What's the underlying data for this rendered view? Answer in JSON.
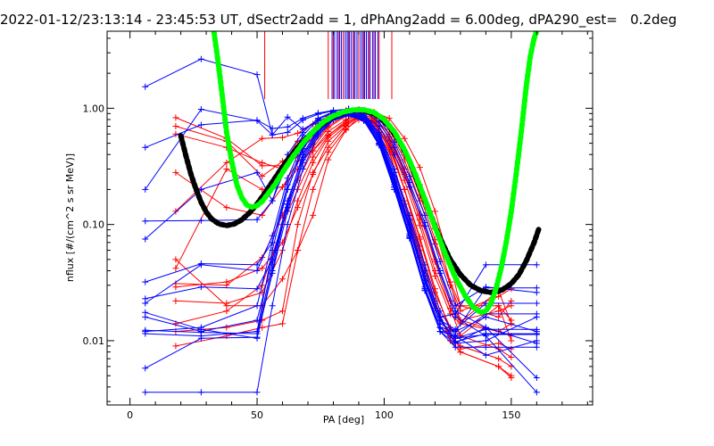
{
  "chart_data": {
    "type": "line",
    "title": "2022-01-12/23:13:14 - 23:45:53 UT, dSectr2add = 1, dPhAng2add = 6.00deg, dPA290_est=   0.2deg",
    "xlabel": "PA [deg]",
    "ylabel": "nflux [#/(cm^2 s sr MeV)]",
    "xlim": [
      -9,
      182
    ],
    "ylim": [
      0.0028,
      4.6
    ],
    "y_scale": "log",
    "x_ticks": [
      0,
      50,
      100,
      150
    ],
    "x_tick_labels": [
      "0",
      "50",
      "100",
      "150"
    ],
    "y_ticks": [
      0.01,
      0.1,
      1.0
    ],
    "y_tick_labels": [
      "0.01",
      "0.10",
      "1.00"
    ],
    "grid": false,
    "colors": {
      "red_series": "#ff0000",
      "blue_series": "#0000ff",
      "black_fit": "#000000",
      "green_fit": "#00ff00",
      "axes": "#000000"
    },
    "spikes": {
      "blue_x": [
        79.5,
        80.5,
        81.5,
        82.5,
        83.2,
        84,
        84.8,
        85.5,
        86.3,
        87,
        87.8,
        88.5,
        89.3,
        90,
        90.8,
        91.5,
        92.3,
        93,
        93.8,
        94.5,
        95.5,
        96.5,
        97.5
      ],
      "red_x": [
        53,
        78,
        80,
        82,
        84,
        86,
        88,
        90,
        92,
        94,
        96,
        98,
        103
      ],
      "blue_top_y": 4.6,
      "blue_bottom_y": 1.2,
      "red_bottom_y": 1.2
    },
    "series_groups": [
      {
        "color": "#ff0000",
        "x": [
          18,
          38,
          52,
          60,
          66,
          72,
          78,
          85,
          90,
          96,
          102,
          108,
          114,
          120,
          126,
          130,
          145,
          150
        ],
        "lines": [
          [
            0.83,
            0.55,
            0.32,
            0.32,
            0.52,
            0.62,
            0.83,
            0.96,
            0.98,
            0.93,
            0.82,
            0.55,
            0.31,
            0.13,
            0.045,
            0.02,
            0.02,
            0.015
          ],
          [
            0.13,
            0.34,
            0.55,
            0.56,
            0.61,
            0.73,
            0.85,
            0.94,
            0.96,
            0.88,
            0.71,
            0.42,
            0.22,
            0.092,
            0.032,
            0.0145,
            0.027,
            0.014
          ],
          [
            0.042,
            0.3,
            0.2,
            0.21,
            0.35,
            0.43,
            0.59,
            0.75,
            0.86,
            0.75,
            0.53,
            0.28,
            0.123,
            0.048,
            0.019,
            0.011,
            0.02,
            0.01
          ],
          [
            0.012,
            0.013,
            0.015,
            0.018,
            0.1,
            0.28,
            0.46,
            0.7,
            0.85,
            0.78,
            0.52,
            0.2,
            0.065,
            0.021,
            0.01,
            0.008,
            0.006,
            0.0048
          ],
          [
            0.05,
            0.02,
            0.02,
            0.034,
            0.06,
            0.12,
            0.36,
            0.65,
            0.84,
            0.77,
            0.44,
            0.15,
            0.052,
            0.019,
            0.011,
            0.009,
            0.007,
            0.006
          ],
          [
            0.7,
            0.52,
            0.26,
            0.35,
            0.42,
            0.56,
            0.77,
            0.9,
            0.92,
            0.87,
            0.66,
            0.36,
            0.16,
            0.068,
            0.032,
            0.02,
            0.016,
            0.022
          ],
          [
            0.009,
            0.011,
            0.013,
            0.014,
            0.06,
            0.2,
            0.42,
            0.66,
            0.8,
            0.7,
            0.42,
            0.16,
            0.06,
            0.022,
            0.01,
            0.008,
            0.006,
            0.005
          ],
          [
            0.029,
            0.032,
            0.042,
            0.07,
            0.14,
            0.27,
            0.52,
            0.71,
            0.85,
            0.74,
            0.46,
            0.2,
            0.075,
            0.026,
            0.013,
            0.011,
            0.0085,
            0.0072
          ],
          [
            0.014,
            0.018,
            0.03,
            0.1,
            0.2,
            0.38,
            0.58,
            0.78,
            0.88,
            0.8,
            0.52,
            0.24,
            0.098,
            0.036,
            0.017,
            0.014,
            0.012,
            0.011
          ],
          [
            0.031,
            0.03,
            0.052,
            0.12,
            0.24,
            0.43,
            0.63,
            0.8,
            0.9,
            0.82,
            0.57,
            0.27,
            0.11,
            0.04,
            0.019,
            0.015,
            0.012,
            0.014
          ],
          [
            0.28,
            0.14,
            0.12,
            0.21,
            0.3,
            0.46,
            0.68,
            0.86,
            0.93,
            0.85,
            0.6,
            0.3,
            0.12,
            0.05,
            0.022,
            0.015,
            0.018,
            0.02
          ],
          [
            0.022,
            0.021,
            0.026,
            0.06,
            0.16,
            0.34,
            0.56,
            0.74,
            0.86,
            0.75,
            0.48,
            0.2,
            0.078,
            0.028,
            0.012,
            0.0085,
            0.0095,
            0.0085
          ],
          [
            0.6,
            0.46,
            0.34,
            0.3,
            0.39,
            0.49,
            0.7,
            0.88,
            0.95,
            0.9,
            0.7,
            0.4,
            0.18,
            0.074,
            0.03,
            0.018,
            0.024,
            0.028
          ]
        ]
      },
      {
        "color": "#0000ff",
        "x": [
          6,
          28,
          50,
          56,
          62,
          68,
          74,
          80,
          86,
          92,
          98,
          104,
          110,
          116,
          122,
          128,
          140,
          160
        ],
        "lines": [
          [
            1.53,
            2.65,
            1.95,
            0.59,
            0.84,
            0.66,
            0.78,
            0.86,
            0.89,
            0.86,
            0.7,
            0.4,
            0.21,
            0.097,
            0.038,
            0.016,
            0.011,
            0.0036
          ],
          [
            0.2,
            0.98,
            0.78,
            0.59,
            0.62,
            0.79,
            0.89,
            0.95,
            0.99,
            0.96,
            0.82,
            0.51,
            0.26,
            0.12,
            0.048,
            0.02,
            0.029,
            0.026
          ],
          [
            0.107,
            0.108,
            0.11,
            0.16,
            0.34,
            0.58,
            0.8,
            0.92,
            0.96,
            0.89,
            0.62,
            0.3,
            0.12,
            0.045,
            0.018,
            0.011,
            0.0075,
            0.01
          ],
          [
            0.075,
            0.2,
            0.28,
            0.16,
            0.4,
            0.62,
            0.82,
            0.93,
            0.95,
            0.87,
            0.6,
            0.28,
            0.11,
            0.04,
            0.016,
            0.0095,
            0.01,
            0.016
          ],
          [
            0.032,
            0.046,
            0.045,
            0.07,
            0.2,
            0.44,
            0.7,
            0.85,
            0.9,
            0.82,
            0.54,
            0.23,
            0.09,
            0.032,
            0.014,
            0.012,
            0.016,
            0.012
          ],
          [
            0.023,
            0.029,
            0.028,
            0.05,
            0.16,
            0.38,
            0.64,
            0.82,
            0.89,
            0.8,
            0.5,
            0.21,
            0.08,
            0.028,
            0.013,
            0.012,
            0.0285,
            0.0285
          ],
          [
            0.0175,
            0.0125,
            0.0105,
            0.038,
            0.13,
            0.34,
            0.6,
            0.8,
            0.88,
            0.78,
            0.48,
            0.2,
            0.076,
            0.027,
            0.012,
            0.011,
            0.017,
            0.017
          ],
          [
            0.016,
            0.012,
            0.015,
            0.05,
            0.14,
            0.36,
            0.62,
            0.81,
            0.88,
            0.79,
            0.49,
            0.2,
            0.077,
            0.027,
            0.012,
            0.0095,
            0.013,
            0.0095
          ],
          [
            0.0123,
            0.0118,
            0.0115,
            0.045,
            0.15,
            0.4,
            0.66,
            0.83,
            0.9,
            0.8,
            0.5,
            0.21,
            0.079,
            0.028,
            0.013,
            0.0098,
            0.0115,
            0.0115
          ],
          [
            0.0115,
            0.011,
            0.012,
            0.06,
            0.2,
            0.45,
            0.7,
            0.85,
            0.91,
            0.83,
            0.56,
            0.24,
            0.093,
            0.033,
            0.015,
            0.0105,
            0.0125,
            0.0125
          ],
          [
            0.0058,
            0.0105,
            0.0107,
            0.04,
            0.15,
            0.4,
            0.67,
            0.84,
            0.9,
            0.81,
            0.52,
            0.22,
            0.083,
            0.029,
            0.013,
            0.0105,
            0.0113,
            0.0113
          ],
          [
            0.0036,
            0.0036,
            0.0036,
            0.02,
            0.1,
            0.3,
            0.58,
            0.79,
            0.86,
            0.78,
            0.5,
            0.21,
            0.08,
            0.028,
            0.012,
            0.0088,
            0.0088,
            0.0088
          ],
          [
            0.46,
            0.72,
            0.79,
            0.67,
            0.69,
            0.82,
            0.91,
            0.96,
            0.98,
            0.94,
            0.76,
            0.46,
            0.23,
            0.104,
            0.04,
            0.018,
            0.013,
            0.0048
          ],
          [
            0.021,
            0.045,
            0.04,
            0.08,
            0.25,
            0.5,
            0.74,
            0.88,
            0.93,
            0.85,
            0.58,
            0.26,
            0.1,
            0.036,
            0.016,
            0.017,
            0.045,
            0.045
          ],
          [
            0.012,
            0.013,
            0.02,
            0.07,
            0.22,
            0.47,
            0.72,
            0.86,
            0.92,
            0.84,
            0.56,
            0.25,
            0.097,
            0.034,
            0.015,
            0.0125,
            0.021,
            0.021
          ]
        ]
      }
    ],
    "fit_curves": [
      {
        "color": "#000000",
        "x": [
          20,
          22,
          24,
          26,
          28,
          30,
          32,
          35,
          38,
          41,
          44,
          47,
          50,
          53,
          56,
          59,
          62,
          66,
          70,
          74,
          78,
          82,
          86,
          90,
          94,
          98,
          102,
          106,
          110,
          114,
          118,
          122,
          126,
          130,
          134,
          138,
          142,
          146,
          150,
          153,
          156,
          159,
          161
        ],
        "y": [
          0.58,
          0.39,
          0.27,
          0.2,
          0.155,
          0.128,
          0.112,
          0.101,
          0.098,
          0.101,
          0.11,
          0.126,
          0.15,
          0.185,
          0.232,
          0.29,
          0.36,
          0.46,
          0.57,
          0.69,
          0.8,
          0.89,
          0.95,
          0.97,
          0.94,
          0.85,
          0.7,
          0.52,
          0.35,
          0.21,
          0.125,
          0.076,
          0.05,
          0.037,
          0.03,
          0.027,
          0.026,
          0.027,
          0.031,
          0.037,
          0.049,
          0.07,
          0.094
        ]
      },
      {
        "color": "#00ff00",
        "x": [
          33,
          34,
          35,
          36,
          37,
          38,
          40,
          42,
          44,
          46,
          48,
          50,
          52,
          54,
          57,
          60,
          64,
          68,
          72,
          76,
          80,
          84,
          88,
          92,
          96,
          100,
          104,
          108,
          112,
          116,
          120,
          124,
          128,
          132,
          135,
          138,
          140,
          142,
          144,
          146,
          148,
          150,
          152,
          154,
          156,
          157.5,
          159,
          160
        ],
        "y": [
          4.6,
          3.2,
          2.2,
          1.45,
          0.95,
          0.62,
          0.35,
          0.22,
          0.17,
          0.147,
          0.141,
          0.145,
          0.158,
          0.18,
          0.22,
          0.28,
          0.38,
          0.5,
          0.63,
          0.76,
          0.86,
          0.93,
          0.97,
          0.97,
          0.92,
          0.8,
          0.63,
          0.44,
          0.28,
          0.165,
          0.095,
          0.056,
          0.035,
          0.024,
          0.0195,
          0.0175,
          0.018,
          0.021,
          0.028,
          0.042,
          0.07,
          0.13,
          0.28,
          0.65,
          1.6,
          2.8,
          4.0,
          4.6
        ]
      }
    ]
  }
}
